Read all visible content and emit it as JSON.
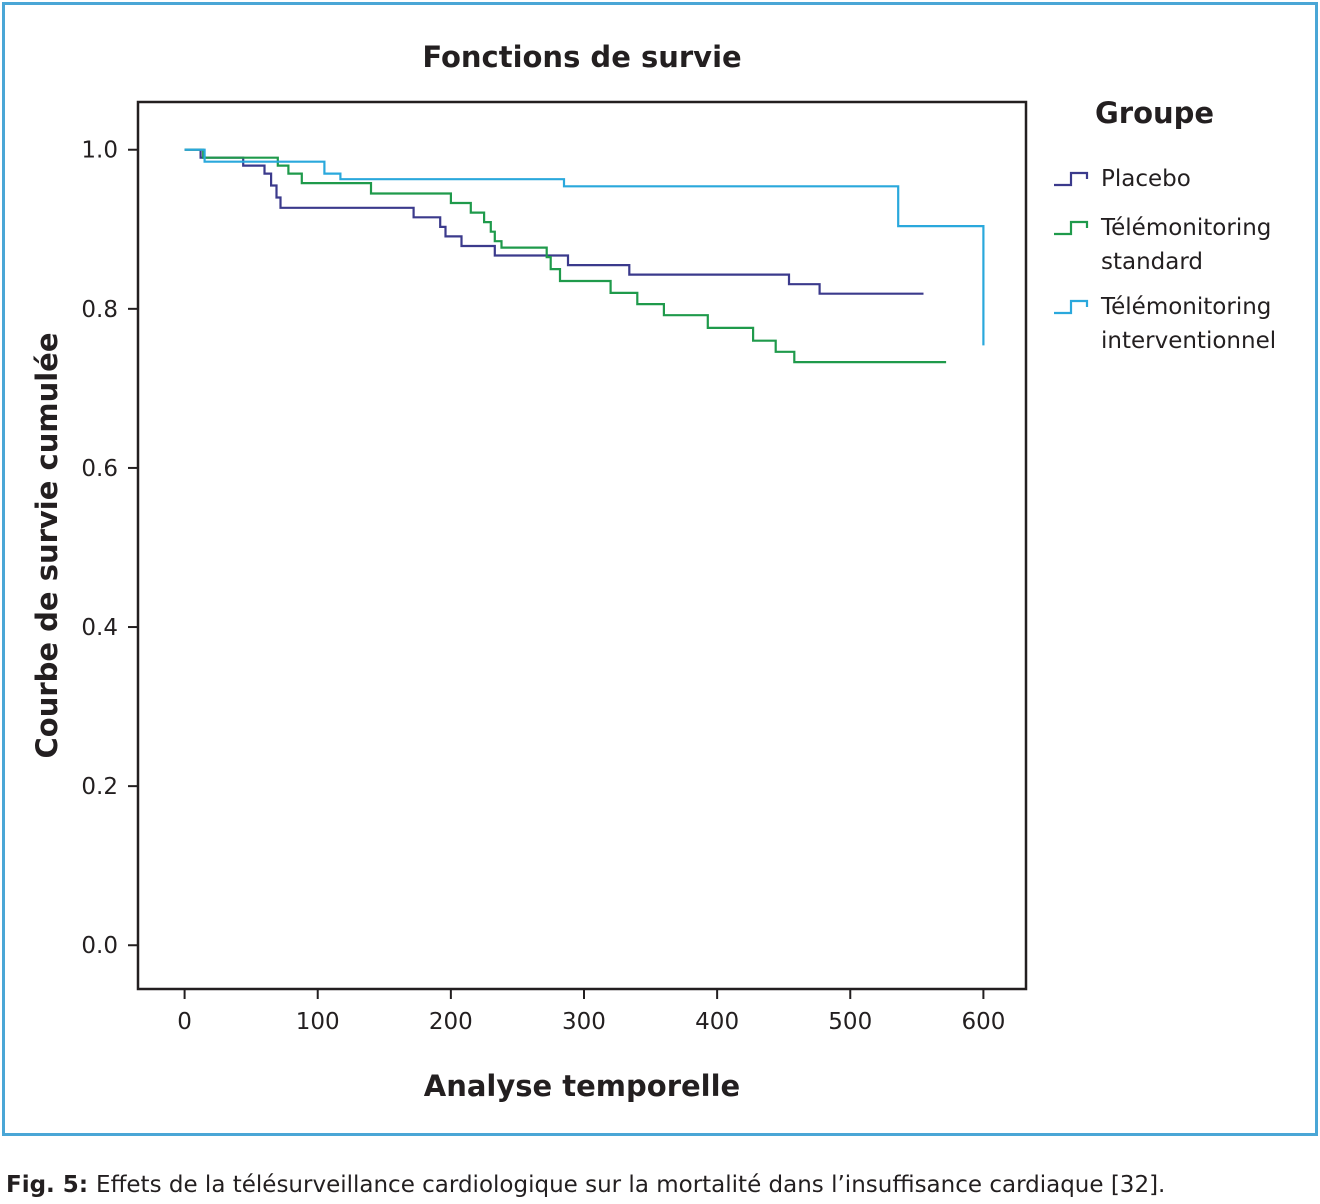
{
  "chart_data": {
    "type": "line",
    "step": true,
    "title": "Fonctions de survie",
    "xlabel": "Analyse temporelle",
    "ylabel": "Courbe de survie cumulée",
    "xlim": [
      -35,
      632
    ],
    "ylim": [
      -0.055,
      1.06
    ],
    "xticks": [
      0,
      100,
      200,
      300,
      400,
      500,
      600
    ],
    "yticks": [
      0.0,
      0.2,
      0.4,
      0.6,
      0.8,
      1.0
    ],
    "ytick_labels": [
      "0.0",
      "0.2",
      "0.4",
      "0.6",
      "0.8",
      "1.0"
    ],
    "grid": false,
    "legend": {
      "title": "Groupe",
      "position": "right",
      "entries": [
        {
          "lines": [
            "Placebo"
          ]
        },
        {
          "lines": [
            "Télémonitoring",
            "standard"
          ]
        },
        {
          "lines": [
            "Télémonitoring",
            "interventionnel"
          ]
        }
      ]
    },
    "series": [
      {
        "name": "Placebo",
        "color": "#3b3a8c",
        "points": [
          [
            0,
            1.0
          ],
          [
            12,
            1.0
          ],
          [
            12,
            0.99
          ],
          [
            44,
            0.99
          ],
          [
            44,
            0.98
          ],
          [
            60,
            0.98
          ],
          [
            60,
            0.97
          ],
          [
            65,
            0.97
          ],
          [
            65,
            0.955
          ],
          [
            69,
            0.955
          ],
          [
            69,
            0.94
          ],
          [
            72,
            0.94
          ],
          [
            72,
            0.927
          ],
          [
            172,
            0.927
          ],
          [
            172,
            0.915
          ],
          [
            192,
            0.915
          ],
          [
            192,
            0.903
          ],
          [
            196,
            0.903
          ],
          [
            196,
            0.891
          ],
          [
            208,
            0.891
          ],
          [
            208,
            0.879
          ],
          [
            233,
            0.879
          ],
          [
            233,
            0.867
          ],
          [
            288,
            0.867
          ],
          [
            288,
            0.855
          ],
          [
            334,
            0.855
          ],
          [
            334,
            0.843
          ],
          [
            454,
            0.843
          ],
          [
            454,
            0.831
          ],
          [
            477,
            0.831
          ],
          [
            477,
            0.819
          ],
          [
            555,
            0.819
          ]
        ]
      },
      {
        "name": "Télémonitoring standard",
        "color": "#1f9a4b",
        "points": [
          [
            0,
            1.0
          ],
          [
            14,
            1.0
          ],
          [
            14,
            0.99
          ],
          [
            70,
            0.99
          ],
          [
            70,
            0.98
          ],
          [
            78,
            0.98
          ],
          [
            78,
            0.97
          ],
          [
            88,
            0.97
          ],
          [
            88,
            0.958
          ],
          [
            140,
            0.958
          ],
          [
            140,
            0.945
          ],
          [
            200,
            0.945
          ],
          [
            200,
            0.933
          ],
          [
            215,
            0.933
          ],
          [
            215,
            0.921
          ],
          [
            225,
            0.921
          ],
          [
            225,
            0.909
          ],
          [
            230,
            0.909
          ],
          [
            230,
            0.897
          ],
          [
            233,
            0.897
          ],
          [
            233,
            0.885
          ],
          [
            238,
            0.885
          ],
          [
            238,
            0.877
          ],
          [
            272,
            0.877
          ],
          [
            272,
            0.865
          ],
          [
            275,
            0.865
          ],
          [
            275,
            0.85
          ],
          [
            282,
            0.85
          ],
          [
            282,
            0.835
          ],
          [
            320,
            0.835
          ],
          [
            320,
            0.82
          ],
          [
            340,
            0.82
          ],
          [
            340,
            0.806
          ],
          [
            360,
            0.806
          ],
          [
            360,
            0.792
          ],
          [
            393,
            0.792
          ],
          [
            393,
            0.776
          ],
          [
            427,
            0.776
          ],
          [
            427,
            0.76
          ],
          [
            444,
            0.76
          ],
          [
            444,
            0.746
          ],
          [
            458,
            0.746
          ],
          [
            458,
            0.733
          ],
          [
            572,
            0.733
          ]
        ]
      },
      {
        "name": "Télémonitoring interventionnel",
        "color": "#2aa8dc",
        "points": [
          [
            0,
            1.0
          ],
          [
            15,
            1.0
          ],
          [
            15,
            0.985
          ],
          [
            105,
            0.985
          ],
          [
            105,
            0.97
          ],
          [
            117,
            0.97
          ],
          [
            117,
            0.963
          ],
          [
            285,
            0.963
          ],
          [
            285,
            0.954
          ],
          [
            536,
            0.954
          ],
          [
            536,
            0.904
          ],
          [
            600,
            0.904
          ],
          [
            600,
            0.754
          ]
        ]
      }
    ]
  },
  "caption": {
    "label": "Fig. 5",
    "separator": ": ",
    "text": "Effets de la télésurveillance cardiologique sur la mortalité dans l’insuffisance cardiaque [32]."
  }
}
